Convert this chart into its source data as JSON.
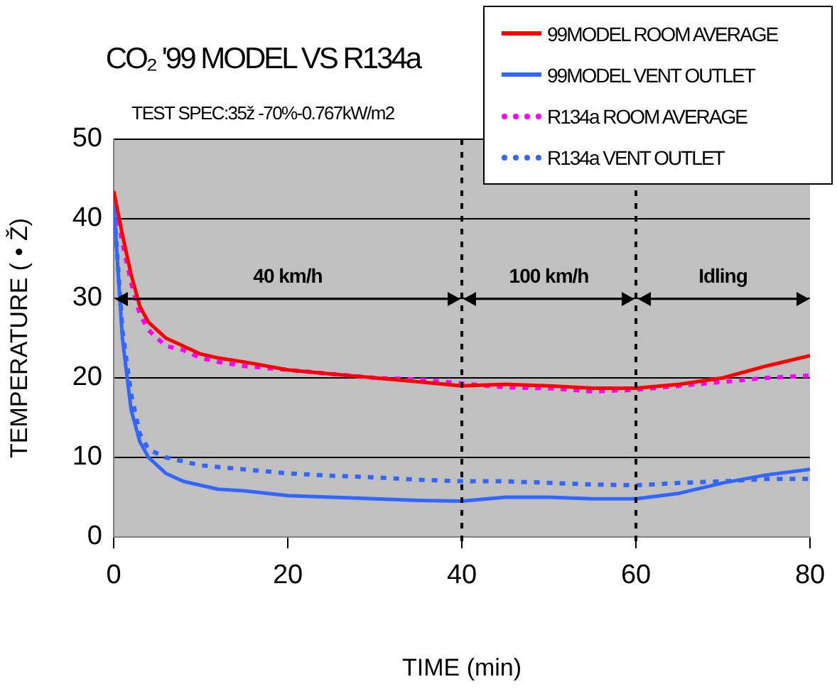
{
  "chart_data": {
    "type": "line",
    "title": "CO₂ '99 MODEL VS R134a",
    "subtitle": "TEST SPEC:35ž -70%-0.767kW/m2",
    "xlabel": "TIME (min)",
    "ylabel": "TEMPERATURE ( • Ž)",
    "x": [
      0,
      1,
      2,
      3,
      4,
      6,
      8,
      10,
      12,
      15,
      20,
      25,
      30,
      35,
      40,
      45,
      50,
      55,
      60,
      65,
      70,
      75,
      80
    ],
    "series": [
      {
        "name": "99MODEL ROOM AVERAGE",
        "color": "#ff0000",
        "line_style": "solid",
        "values": [
          43.5,
          38,
          33,
          29,
          27,
          25,
          24,
          23,
          22.5,
          22,
          21,
          20.5,
          20,
          19.5,
          19,
          19.2,
          19,
          18.7,
          18.7,
          19.2,
          20,
          21.5,
          22.8
        ]
      },
      {
        "name": "99MODEL VENT OUTLET",
        "color": "#3366ff",
        "line_style": "solid",
        "values": [
          42,
          25,
          16,
          12,
          10,
          8,
          7,
          6.5,
          6,
          5.8,
          5.2,
          5,
          4.8,
          4.6,
          4.5,
          5,
          5,
          4.8,
          4.8,
          5.5,
          6.8,
          7.8,
          8.5
        ]
      },
      {
        "name": "R134a ROOM AVERAGE",
        "color": "#ff00ff",
        "line_style": "dotted",
        "values": [
          43,
          37,
          32,
          28,
          26,
          24,
          23.5,
          22.5,
          22,
          21.5,
          21,
          20.5,
          20,
          19.8,
          19.3,
          18.8,
          18.7,
          18.3,
          18.5,
          19,
          19.5,
          20,
          20.3
        ]
      },
      {
        "name": "R134a VENT OUTLET",
        "color": "#3366ff",
        "line_style": "dotted",
        "values": [
          42,
          26,
          18,
          13,
          11,
          10,
          9.5,
          9,
          8.8,
          8.5,
          8,
          7.7,
          7.5,
          7.2,
          7,
          7,
          6.8,
          6.6,
          6.5,
          6.8,
          7,
          7.3,
          7.3
        ]
      }
    ],
    "xlim": [
      0,
      80
    ],
    "xticks": [
      0,
      20,
      40,
      60,
      80
    ],
    "ylim": [
      0,
      50
    ],
    "yticks": [
      0,
      10,
      20,
      30,
      40,
      50
    ],
    "grid": "y",
    "legend": "top right",
    "marker": "none",
    "ref_lines": [
      {
        "axis": "x",
        "value": 40,
        "color": "#000000",
        "line_style": "dotted"
      },
      {
        "axis": "x",
        "value": 60,
        "color": "#000000",
        "line_style": "dotted"
      }
    ],
    "annotations": [
      "40 km/h",
      "100 km/h",
      "Idling"
    ]
  }
}
